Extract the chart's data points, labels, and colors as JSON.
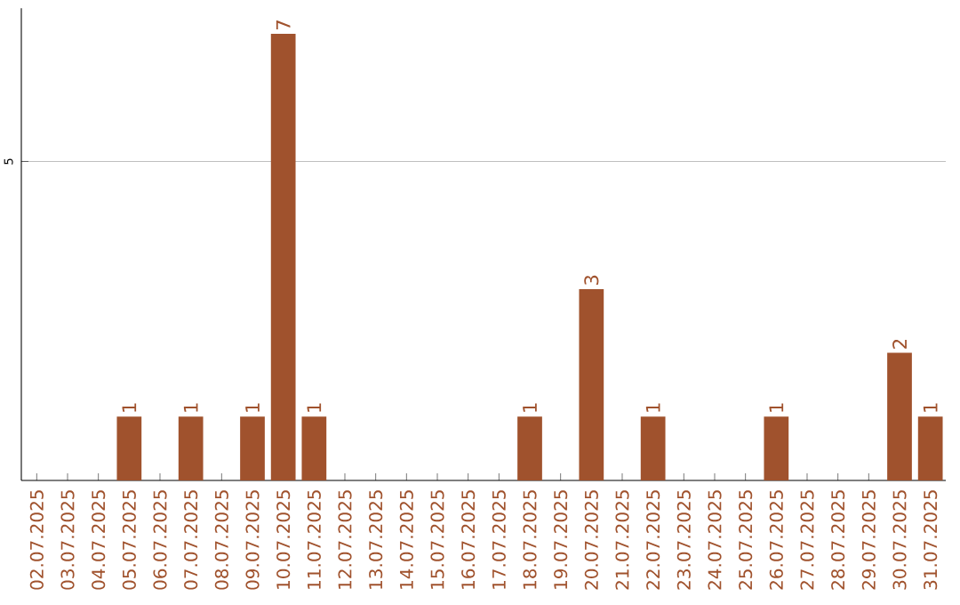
{
  "chart_data": {
    "type": "bar",
    "categories": [
      "02.07.2025",
      "03.07.2025",
      "04.07.2025",
      "05.07.2025",
      "06.07.2025",
      "07.07.2025",
      "08.07.2025",
      "09.07.2025",
      "10.07.2025",
      "11.07.2025",
      "12.07.2025",
      "13.07.2025",
      "14.07.2025",
      "15.07.2025",
      "16.07.2025",
      "17.07.2025",
      "18.07.2025",
      "19.07.2025",
      "20.07.2025",
      "21.07.2025",
      "22.07.2025",
      "23.07.2025",
      "24.07.2025",
      "25.07.2025",
      "26.07.2025",
      "27.07.2025",
      "28.07.2025",
      "29.07.2025",
      "30.07.2025",
      "31.07.2025"
    ],
    "values": [
      0,
      0,
      0,
      1,
      0,
      1,
      0,
      1,
      7,
      1,
      0,
      0,
      0,
      0,
      0,
      0,
      1,
      0,
      3,
      0,
      1,
      0,
      0,
      0,
      1,
      0,
      0,
      0,
      2,
      1
    ],
    "value_labels": [
      null,
      null,
      null,
      "1",
      null,
      "1",
      null,
      "1",
      "7",
      "1",
      null,
      null,
      null,
      null,
      null,
      null,
      "1",
      null,
      "3",
      null,
      "1",
      null,
      null,
      null,
      "1",
      null,
      null,
      null,
      "2",
      "1"
    ],
    "color": "#a0522d",
    "ylim": [
      0,
      7.4
    ],
    "yticks": [
      5
    ],
    "grid": "y"
  }
}
